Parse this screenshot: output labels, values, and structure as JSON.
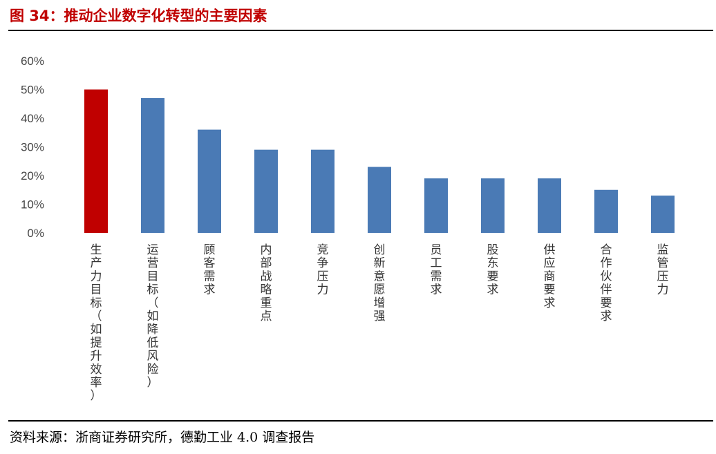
{
  "header": {
    "title": "图 34：推动企业数字化转型的主要因素"
  },
  "footer": {
    "source": "资料来源：浙商证券研究所，德勤工业 4.0 调查报告"
  },
  "colors": {
    "highlight": "#c00000",
    "bar": "#4a7ab5",
    "title": "#c00000"
  },
  "chart_data": {
    "type": "bar",
    "title": "",
    "xlabel": "",
    "ylabel": "",
    "ylim": [
      0,
      60
    ],
    "yticks": [
      "0%",
      "10%",
      "20%",
      "30%",
      "40%",
      "50%",
      "60%"
    ],
    "grid": false,
    "legend": "none",
    "categories": [
      "生产力目标（如提升效率）",
      "运营目标（如降低风险）",
      "顾客需求",
      "内部战略重点",
      "竞争压力",
      "创新意愿增强",
      "员工需求",
      "股东要求",
      "供应商要求",
      "合作伙伴要求",
      "监管压力"
    ],
    "values": [
      50,
      47,
      36,
      29,
      29,
      23,
      19,
      19,
      19,
      15,
      13
    ],
    "highlight_index": 0
  }
}
